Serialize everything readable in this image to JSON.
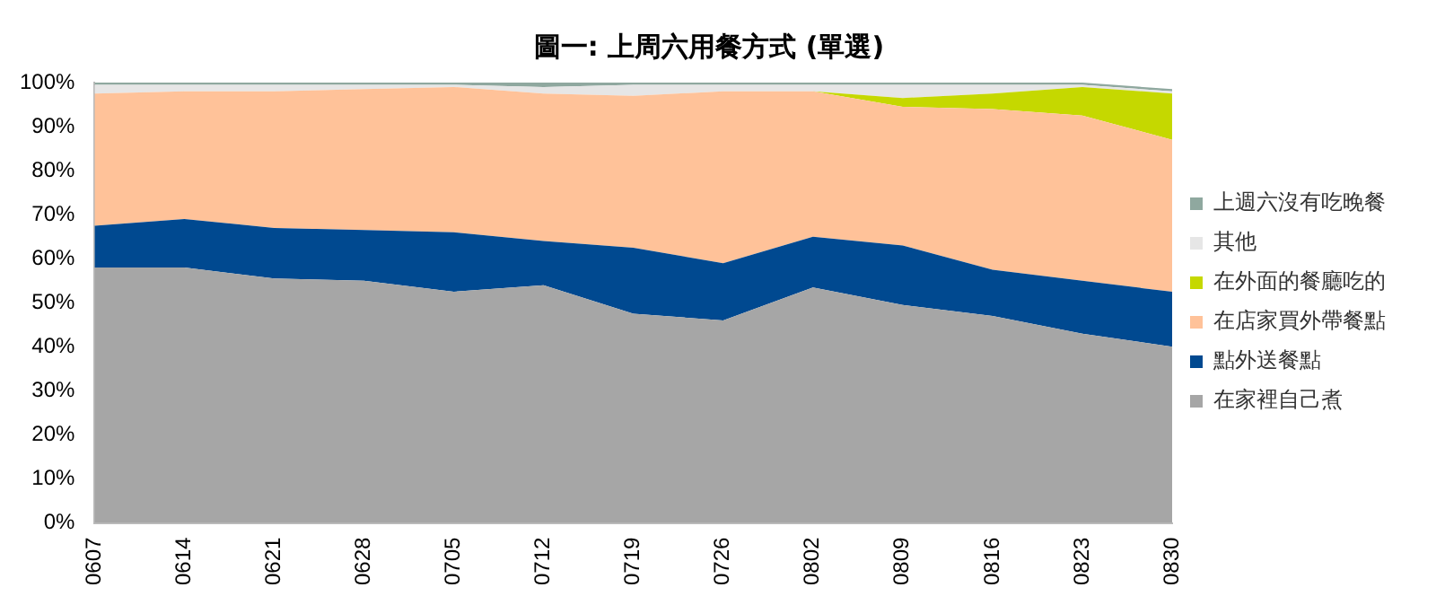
{
  "chart_data": {
    "type": "area",
    "title": "圖一: 上周六用餐方式 (單選)",
    "stacked": true,
    "legend": "right",
    "grid": false,
    "categories": [
      "0607",
      "0614",
      "0621",
      "0628",
      "0705",
      "0712",
      "0719",
      "0726",
      "0802",
      "0809",
      "0816",
      "0823",
      "0830"
    ],
    "ylim": [
      0,
      100
    ],
    "yticks": [
      {
        "value": 0,
        "label": "0%"
      },
      {
        "value": 10,
        "label": "10%"
      },
      {
        "value": 20,
        "label": "20%"
      },
      {
        "value": 30,
        "label": "30%"
      },
      {
        "value": 40,
        "label": "40%"
      },
      {
        "value": 50,
        "label": "50%"
      },
      {
        "value": 60,
        "label": "60%"
      },
      {
        "value": 70,
        "label": "70%"
      },
      {
        "value": 80,
        "label": "80%"
      },
      {
        "value": 90,
        "label": "90%"
      },
      {
        "value": 100,
        "label": "100%"
      }
    ],
    "series": [
      {
        "name": "在家裡自己煮",
        "color": "#a6a6a6",
        "values": [
          58,
          58,
          55.5,
          55,
          52.5,
          54,
          47.5,
          46,
          53.5,
          49.5,
          47,
          43,
          40
        ]
      },
      {
        "name": "點外送餐點",
        "color": "#004990",
        "values": [
          9.5,
          11,
          11.5,
          11.5,
          13.5,
          10,
          15,
          13,
          11.5,
          13.5,
          10.5,
          12,
          12.5
        ]
      },
      {
        "name": "在店家買外帶餐點",
        "color": "#ffc299",
        "values": [
          30,
          29,
          31,
          32,
          33,
          33.5,
          34.5,
          39,
          33,
          31.5,
          36.5,
          37.5,
          34.5
        ]
      },
      {
        "name": "在外面的餐廳吃的",
        "color": "#c5d800",
        "values": [
          0,
          0,
          0,
          0,
          0,
          0,
          0,
          0,
          0,
          2,
          3.5,
          6.5,
          10.5
        ]
      },
      {
        "name": "其他",
        "color": "#e6e6e6",
        "values": [
          2,
          1.5,
          1.5,
          1,
          0.5,
          1.5,
          2.5,
          1.5,
          1.5,
          3,
          2,
          0.5,
          0.5
        ]
      },
      {
        "name": "上週六沒有吃晚餐",
        "color": "#8fa89f",
        "values": [
          0.5,
          0.5,
          0.5,
          0.5,
          0.5,
          1,
          0.5,
          0.5,
          0.5,
          0.5,
          0.5,
          0.5,
          0.5
        ]
      }
    ]
  }
}
